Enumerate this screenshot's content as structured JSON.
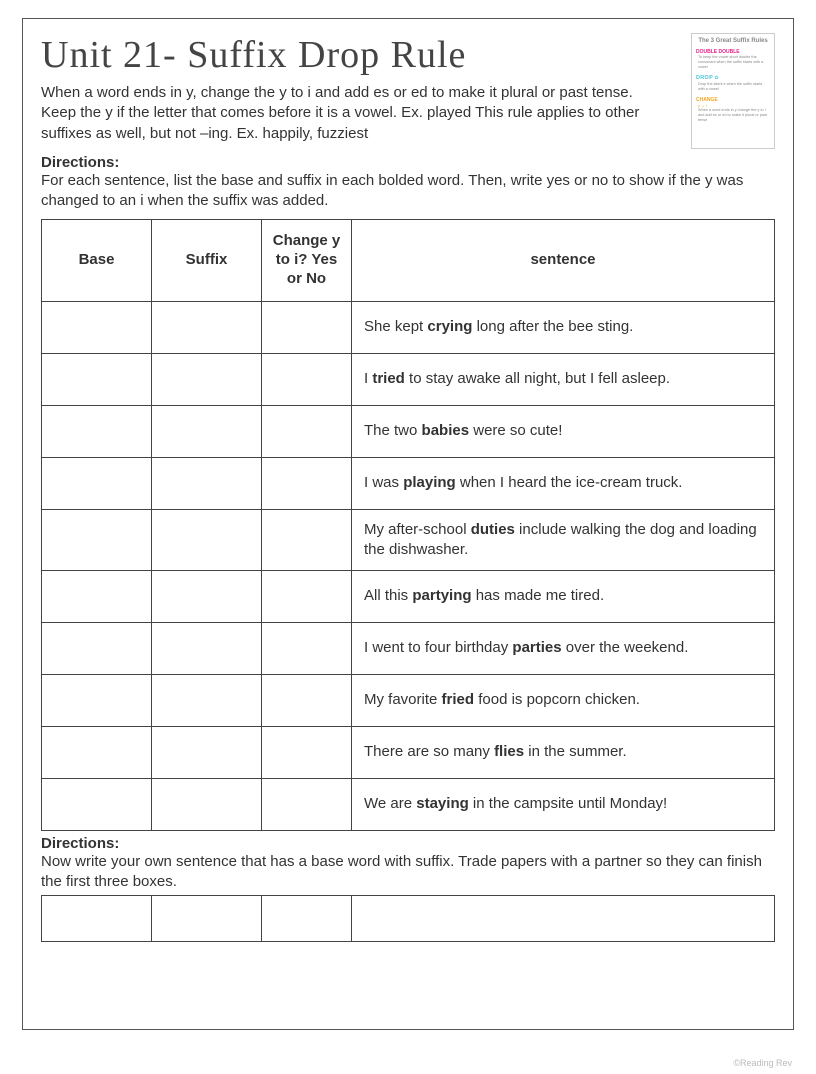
{
  "title": "Unit 21- Suffix Drop Rule",
  "intro": "When a word ends in y, change the y to i and add es or ed to make it plural or past tense. Keep the y if the letter that comes before it is a vowel.  Ex. played This rule applies to other suffixes as well, but not –ing. Ex. happily, fuzziest",
  "directions1_label": "Directions:",
  "directions1_text": "For each sentence, list the base and suffix in each bolded word. Then, write yes or no to show if the y was changed to an i when the suffix was added.",
  "table": {
    "headers": {
      "base": "Base",
      "suffix": "Suffix",
      "change": "Change y to i? Yes or No",
      "sentence": "sentence"
    },
    "rows": [
      {
        "pre": "She kept ",
        "bold": "crying",
        "post": " long after the bee sting."
      },
      {
        "pre": "I ",
        "bold": "tried",
        "post": " to stay awake all night, but I fell asleep."
      },
      {
        "pre": "The two ",
        "bold": "babies",
        "post": " were so cute!"
      },
      {
        "pre": "I was ",
        "bold": "playing",
        "post": " when I heard the ice-cream truck."
      },
      {
        "pre": "My after-school ",
        "bold": "duties",
        "post": " include walking the dog and loading the dishwasher."
      },
      {
        "pre": "All this ",
        "bold": "partying",
        "post": " has made me tired."
      },
      {
        "pre": "I went to four birthday ",
        "bold": "parties",
        "post": " over the weekend."
      },
      {
        "pre": "My favorite ",
        "bold": "fried",
        "post": " food is popcorn chicken."
      },
      {
        "pre": "There are so many ",
        "bold": "flies",
        "post": " in the summer."
      },
      {
        "pre": "We are ",
        "bold": "staying",
        "post": " in the campsite until Monday!"
      }
    ],
    "col_widths": {
      "base": 110,
      "suffix": 110,
      "change": 90
    }
  },
  "directions2_label": "Directions:",
  "directions2_text": "Now write your own sentence that has a base word with suffix. Trade papers with a partner so they can finish the first three boxes.",
  "thumb": {
    "title": "The 3 Great Suffix Rules",
    "row1_label": "DOUBLE DOUBLE",
    "row2_label": "DROP",
    "row3_label": "CHANGE"
  },
  "footer": "©Reading Rev",
  "colors": {
    "border": "#444444",
    "text": "#333333",
    "title": "#444444",
    "pink": "#e91e8c",
    "blue": "#4fc3d9",
    "orange": "#f5a623"
  },
  "typography": {
    "title_fontsize": 38,
    "body_fontsize": 15,
    "thumb_fontsize": 5
  }
}
